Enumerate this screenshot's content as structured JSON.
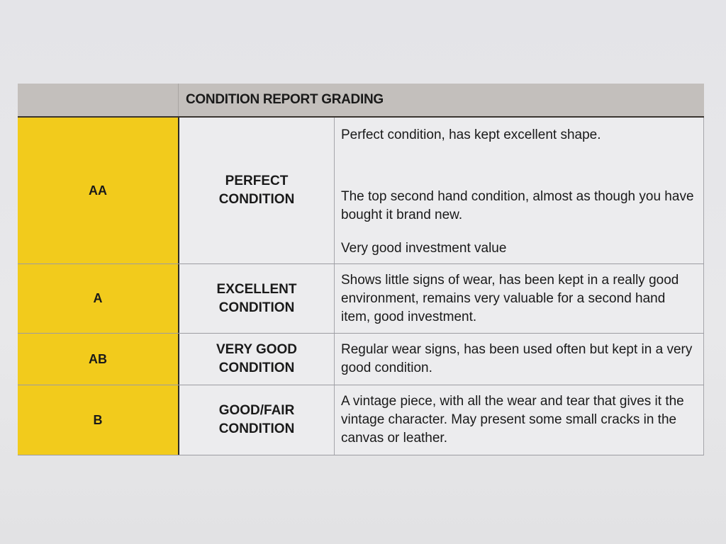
{
  "table": {
    "title": "CONDITION REPORT GRADING",
    "rows": [
      {
        "grade": "AA",
        "condition_line1": "PERFECT",
        "condition_line2": "CONDITION",
        "description": [
          "Perfect condition, has kept excellent shape.",
          "The top second hand condition, almost as though you have bought it brand new.",
          "Very good investment value"
        ]
      },
      {
        "grade": "A",
        "condition_line1": "EXCELLENT",
        "condition_line2": "CONDITION",
        "description": [
          "Shows little signs of wear, has been kept in a really good environment, remains very valuable for a second hand item, good investment."
        ]
      },
      {
        "grade": "AB",
        "condition_line1": "VERY GOOD",
        "condition_line2": "CONDITION",
        "description": [
          "Regular wear signs, has been used often but kept in a very good condition."
        ]
      },
      {
        "grade": "B",
        "condition_line1": "GOOD/FAIR",
        "condition_line2": "CONDITION",
        "description": [
          "A vintage piece, with all the wear and tear that gives it the vintage character. May present some small cracks in the canvas or leather."
        ]
      }
    ]
  },
  "colors": {
    "grade_column": "#f2cb1c",
    "header": "#c3bfbc",
    "cell": "#ececee"
  }
}
